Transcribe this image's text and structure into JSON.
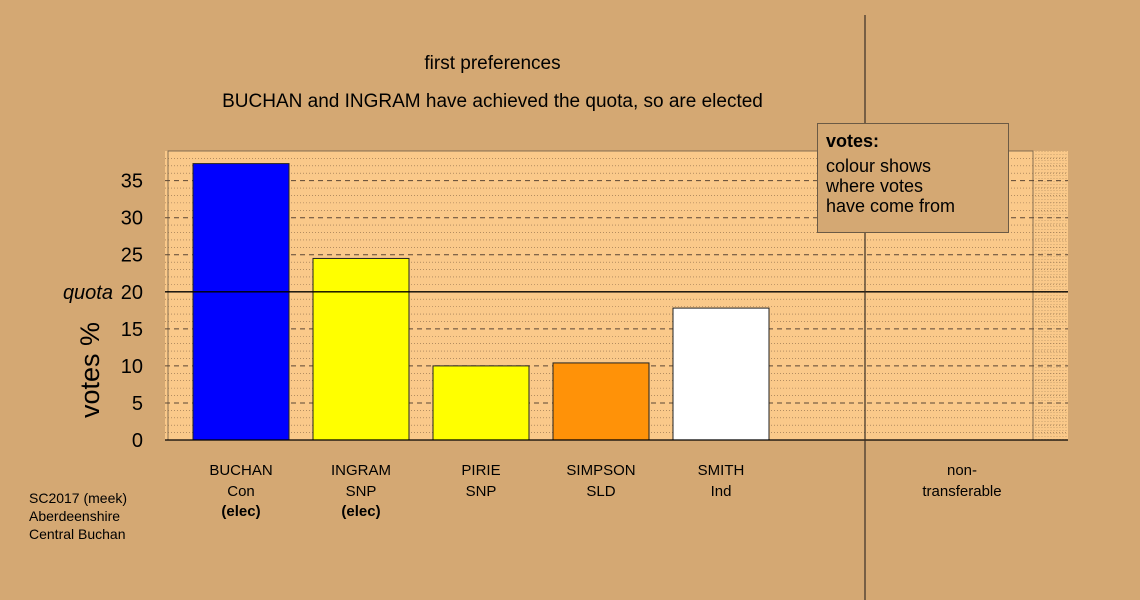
{
  "titles": {
    "line1": "first preferences",
    "line2": "BUCHAN and INGRAM have achieved the quota, so are elected"
  },
  "legend": {
    "title": "votes:",
    "lines": [
      "colour shows",
      "where votes",
      "have come from"
    ]
  },
  "footer": [
    "SC2017 (meek)",
    "Aberdeenshire",
    "Central Buchan"
  ],
  "colors": {
    "background": "#d4a873",
    "plot_background": "#fac98a",
    "Con": "#0000ff",
    "SNP": "#ffff00",
    "SLD": "#ff9208",
    "Ind": "#ffffff"
  },
  "chart_data": {
    "type": "bar",
    "ylabel": "votes %",
    "ylim": [
      0,
      39
    ],
    "yticks": [
      0,
      5,
      10,
      15,
      20,
      25,
      30,
      35
    ],
    "quota": {
      "label": "quota",
      "value": 20
    },
    "grid": true,
    "categories": [
      {
        "name": "BUCHAN",
        "party": "Con",
        "status": "(elec)",
        "value": 37.3,
        "color": "#0000ff"
      },
      {
        "name": "INGRAM",
        "party": "SNP",
        "status": "(elec)",
        "value": 24.5,
        "color": "#ffff00"
      },
      {
        "name": "PIRIE",
        "party": "SNP",
        "status": "",
        "value": 10.0,
        "color": "#ffff00"
      },
      {
        "name": "SIMPSON",
        "party": "SLD",
        "status": "",
        "value": 10.4,
        "color": "#ff9208"
      },
      {
        "name": "SMITH",
        "party": "Ind",
        "status": "",
        "value": 17.8,
        "color": "#ffffff"
      }
    ],
    "nontransferable": {
      "label_lines": [
        "non-",
        "transferable"
      ],
      "value": 0
    }
  }
}
